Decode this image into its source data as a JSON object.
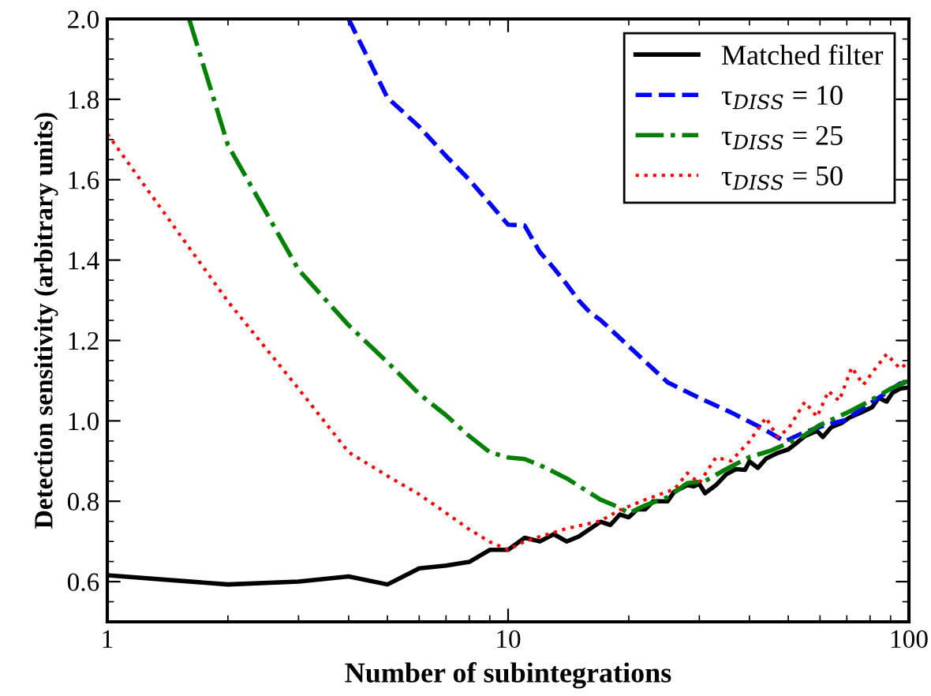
{
  "chart_data": {
    "type": "line",
    "xlabel": "Number of subintegrations",
    "ylabel": "Detection sensitivity (arbitrary units)",
    "log": "x",
    "xlim": [
      1,
      100
    ],
    "xticks": [
      1,
      10,
      100
    ],
    "ylim": [
      0.5,
      2.0
    ],
    "yticks": [
      {
        "value": 0.6,
        "label": "0.6"
      },
      {
        "value": 0.8,
        "label": "0.8"
      },
      {
        "value": 1.0,
        "label": "1.0"
      },
      {
        "value": 1.2,
        "label": "1.2"
      },
      {
        "value": 1.4,
        "label": "1.4"
      },
      {
        "value": 1.6,
        "label": "1.6"
      },
      {
        "value": 1.8,
        "label": "1.8"
      },
      {
        "value": 2.0,
        "label": "2.0"
      }
    ],
    "grid": false,
    "legend": "top right",
    "series": [
      {
        "name": "Matched filter",
        "color": "#000000",
        "line_style": "solid",
        "x": [
          1,
          2,
          3,
          4,
          5,
          6,
          7,
          8,
          9,
          10,
          11,
          12,
          13,
          14,
          15,
          17,
          18,
          19,
          20,
          21,
          22,
          23,
          25,
          26,
          28,
          29,
          30,
          31,
          33,
          35,
          37,
          39,
          40,
          42,
          44,
          47,
          50,
          52,
          55,
          59,
          61,
          64,
          68,
          71,
          76,
          81,
          84,
          88,
          91,
          95,
          100
        ],
        "values": [
          0.616,
          0.593,
          0.6,
          0.613,
          0.593,
          0.633,
          0.64,
          0.649,
          0.679,
          0.679,
          0.709,
          0.7,
          0.718,
          0.7,
          0.712,
          0.749,
          0.741,
          0.767,
          0.76,
          0.78,
          0.78,
          0.8,
          0.8,
          0.824,
          0.84,
          0.837,
          0.843,
          0.82,
          0.84,
          0.867,
          0.88,
          0.878,
          0.899,
          0.883,
          0.906,
          0.92,
          0.929,
          0.942,
          0.962,
          0.975,
          0.96,
          0.984,
          0.995,
          1.008,
          1.021,
          1.034,
          1.057,
          1.048,
          1.07,
          1.08,
          1.083
        ]
      },
      {
        "name": "τ$_{DISS}$ = 10",
        "color": "#0000ff",
        "line_style": "dashed",
        "x": [
          4,
          5,
          6,
          7,
          8,
          9,
          10,
          11,
          12,
          13,
          14,
          15,
          16,
          17,
          21,
          25,
          30,
          36,
          43,
          49,
          55,
          62,
          69,
          80,
          95,
          100
        ],
        "values": [
          2.0,
          1.804,
          1.732,
          1.659,
          1.6,
          1.541,
          1.488,
          1.486,
          1.42,
          1.38,
          1.34,
          1.3,
          1.27,
          1.251,
          1.166,
          1.096,
          1.057,
          1.021,
          0.982,
          0.949,
          0.972,
          0.99,
          1.001,
          1.043,
          1.093,
          1.096
        ]
      },
      {
        "name": "τ$_{DISS}$ = 25",
        "color": "#008000",
        "line_style": "dashdot",
        "x": [
          1.6,
          2,
          3,
          4,
          5,
          6,
          7,
          8,
          9,
          10,
          11,
          12,
          14,
          17,
          19,
          20,
          22,
          25,
          28,
          31,
          35,
          40,
          45,
          50,
          55,
          60,
          70,
          80,
          90,
          100
        ],
        "values": [
          2.0,
          1.686,
          1.376,
          1.238,
          1.146,
          1.067,
          1.014,
          0.962,
          0.922,
          0.909,
          0.905,
          0.89,
          0.857,
          0.804,
          0.784,
          0.77,
          0.79,
          0.81,
          0.845,
          0.85,
          0.88,
          0.91,
          0.925,
          0.945,
          0.965,
          0.99,
          1.02,
          1.05,
          1.08,
          1.1
        ]
      },
      {
        "name": "τ$_{DISS}$ = 50",
        "color": "#ff0000",
        "line_style": "dotted",
        "x": [
          1,
          2,
          3,
          4,
          5,
          6,
          7,
          8,
          9,
          10,
          11,
          12,
          14,
          17,
          19,
          22,
          26,
          28,
          30,
          33,
          36,
          40,
          44,
          47,
          50,
          55,
          59,
          63,
          67,
          72,
          77,
          81,
          88,
          95,
          100
        ],
        "values": [
          1.714,
          1.297,
          1.08,
          0.922,
          0.863,
          0.817,
          0.771,
          0.73,
          0.699,
          0.679,
          0.7,
          0.712,
          0.732,
          0.751,
          0.778,
          0.804,
          0.83,
          0.87,
          0.845,
          0.909,
          0.9,
          0.949,
          1.008,
          0.96,
          0.98,
          1.047,
          1.01,
          1.074,
          1.05,
          1.133,
          1.09,
          1.12,
          1.166,
          1.13,
          1.146
        ]
      }
    ]
  }
}
